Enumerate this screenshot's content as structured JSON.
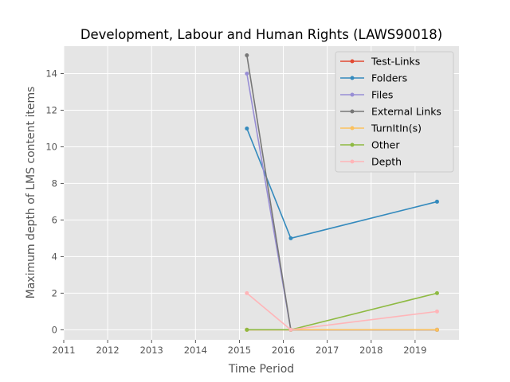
{
  "chart_data": {
    "type": "line",
    "title": "Development, Labour and Human Rights (LAWS90018)",
    "xlabel": "Time Period",
    "ylabel": "Maximum depth of LMS content items",
    "xlim": [
      2011,
      2020
    ],
    "ylim": [
      -0.55,
      15.5
    ],
    "x_ticks": [
      "2011",
      "2012",
      "2013",
      "2014",
      "2015",
      "2016",
      "2017",
      "2018",
      "2019"
    ],
    "y_ticks": [
      "0",
      "2",
      "4",
      "6",
      "8",
      "10",
      "12",
      "14"
    ],
    "grid": true,
    "legend_position": "top-right",
    "x": [
      2015.17,
      2016.17,
      2019.5
    ],
    "series": [
      {
        "name": "Test-Links",
        "color": "#E24A33",
        "values": [
          0,
          0,
          0
        ]
      },
      {
        "name": "Folders",
        "color": "#348ABD",
        "values": [
          11,
          5,
          7
        ]
      },
      {
        "name": "Files",
        "color": "#988ED5",
        "values": [
          14,
          0,
          0
        ]
      },
      {
        "name": "External Links",
        "color": "#777777",
        "values": [
          15,
          0,
          0
        ]
      },
      {
        "name": "TurnItIn(s)",
        "color": "#FBC15E",
        "values": [
          0,
          0,
          0
        ]
      },
      {
        "name": "Other",
        "color": "#8EBA42",
        "values": [
          0,
          0,
          2
        ]
      },
      {
        "name": "Depth",
        "color": "#FFB5B8",
        "values": [
          2,
          0,
          1
        ]
      }
    ]
  }
}
